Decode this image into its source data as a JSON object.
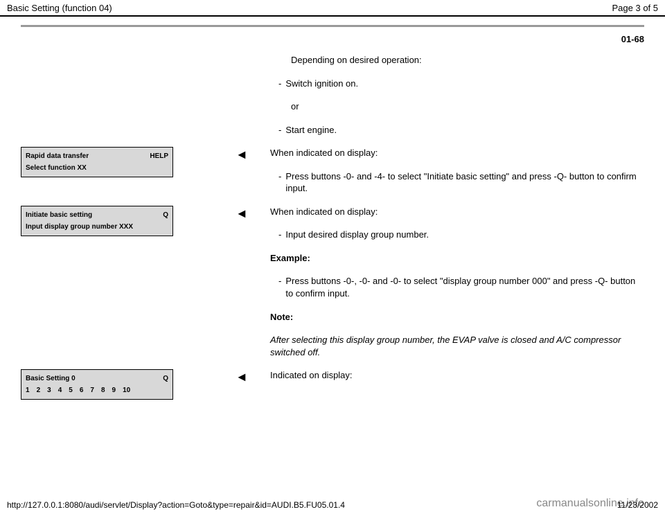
{
  "header": {
    "title": "Basic Setting (function 04)",
    "page_label": "Page 3 of 5"
  },
  "section_number": "01-68",
  "intro_line": "Depending on desired operation:",
  "bullets_top": {
    "b1": "Switch ignition on.",
    "or": "or",
    "b2": "Start engine."
  },
  "block1": {
    "display": {
      "line1_left": "Rapid data transfer",
      "line1_right": "HELP",
      "line2": "Select function XX"
    },
    "heading": "When indicated on display:",
    "bullet": "Press buttons -0- and -4- to select \"Initiate basic setting\" and press -Q- button to confirm input."
  },
  "block2": {
    "display": {
      "line1_left": "Initiate basic setting",
      "line1_right": "Q",
      "line2": "Input display group number XXX"
    },
    "heading": "When indicated on display:",
    "bullet1": "Input desired display group number.",
    "example_label": "Example:",
    "bullet2": "Press buttons -0-, -0- and -0- to select \"display group number 000\" and press -Q- button to confirm input.",
    "note_label": "Note:",
    "note_text": "After selecting this display group number, the EVAP valve is closed and A/C compressor switched off."
  },
  "block3": {
    "display": {
      "line1_left": "Basic Setting 0",
      "line1_right": "Q",
      "numbers": [
        "1",
        "2",
        "3",
        "4",
        "5",
        "6",
        "7",
        "8",
        "9",
        "10"
      ]
    },
    "heading": "Indicated on display:"
  },
  "footer": {
    "url": "http://127.0.0.1:8080/audi/servlet/Display?action=Goto&type=repair&id=AUDI.B5.FU05.01.4",
    "date": "11/23/2002"
  },
  "watermark": "carmanualsonline.info",
  "colors": {
    "box_bg": "#d8d8d8",
    "sep": "#999999",
    "text": "#000000",
    "watermark": "#888888"
  }
}
